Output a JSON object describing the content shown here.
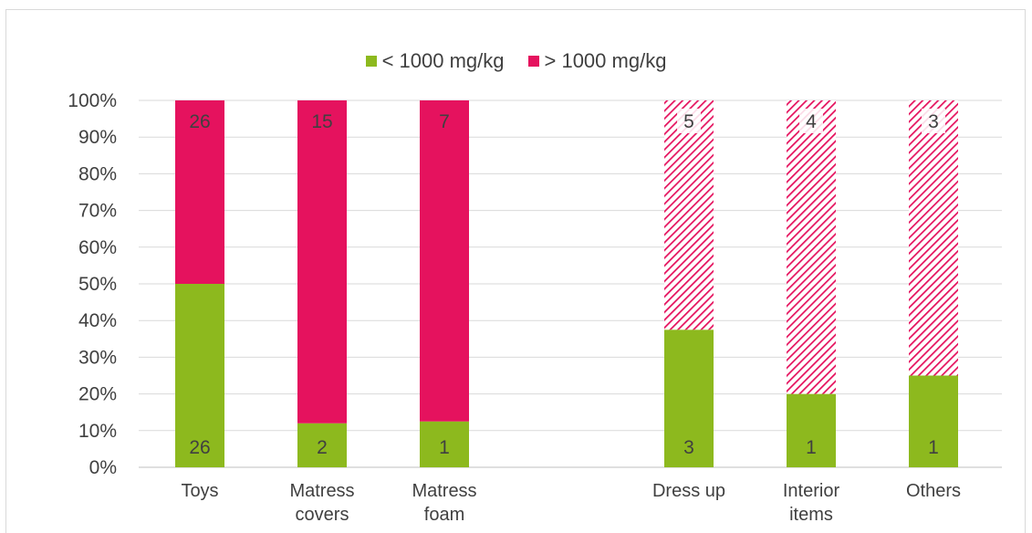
{
  "chart_data": {
    "type": "bar",
    "stacked": true,
    "normalized": true,
    "categories": [
      "Toys",
      "Matress covers",
      "Matress foam",
      "",
      "Dress up",
      "Interior items",
      "Others"
    ],
    "category_lines": [
      [
        "Toys"
      ],
      [
        "Matress",
        "covers"
      ],
      [
        "Matress",
        "foam"
      ],
      [],
      [
        "Dress up"
      ],
      [
        "Interior",
        "items"
      ],
      [
        "Others"
      ]
    ],
    "series": [
      {
        "name": "< 1000 mg/kg",
        "color": "#8DB91E",
        "counts": [
          26,
          2,
          1,
          null,
          3,
          1,
          1
        ],
        "values": [
          50,
          12,
          12.5,
          null,
          37.5,
          20,
          25
        ]
      },
      {
        "name": "> 1000 mg/kg",
        "color": "#E5125E",
        "counts": [
          26,
          15,
          7,
          null,
          5,
          4,
          3
        ],
        "values": [
          50,
          88,
          87.5,
          null,
          62.5,
          80,
          75
        ],
        "hatched": [
          false,
          false,
          false,
          false,
          true,
          true,
          true
        ]
      }
    ],
    "y_ticks": [
      "0%",
      "10%",
      "20%",
      "30%",
      "40%",
      "50%",
      "60%",
      "70%",
      "80%",
      "90%",
      "100%"
    ],
    "ylim": [
      0,
      100
    ],
    "grid": true,
    "legend": "top-center"
  }
}
